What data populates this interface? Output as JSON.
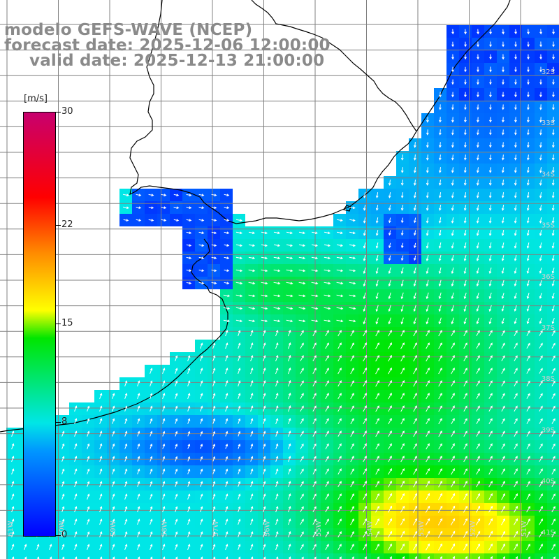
{
  "header": {
    "model": "modelo GEFS-WAVE (NCEP)",
    "forecast": "forecast date: 2025-12-06 12:00:00",
    "valid": "valid date: 2025-12-13 21:00:00"
  },
  "colorbar": {
    "unit": "[m/s]",
    "min": 0,
    "max": 30,
    "ticks": [
      "0",
      "8",
      "15",
      "22",
      "30"
    ],
    "colors": [
      "#0000ff",
      "#0096ff",
      "#00e6e6",
      "#00e600",
      "#ffff00",
      "#ff8c00",
      "#ff0000",
      "#c8006e"
    ]
  },
  "lat_labels": [
    "32S",
    "33S",
    "34S",
    "35S",
    "36S",
    "37S",
    "38S",
    "39S",
    "40S",
    "41S"
  ],
  "lon_labels": [
    "61W",
    "60W",
    "59W",
    "58W",
    "57W",
    "56W",
    "55W",
    "54W",
    "53W",
    "52W",
    "51W"
  ],
  "colors": {
    "land": "#ffffff",
    "coast": "#000000",
    "grid": "#808080",
    "header": "#8a8a8a",
    "arrow": "#ffffff"
  }
}
